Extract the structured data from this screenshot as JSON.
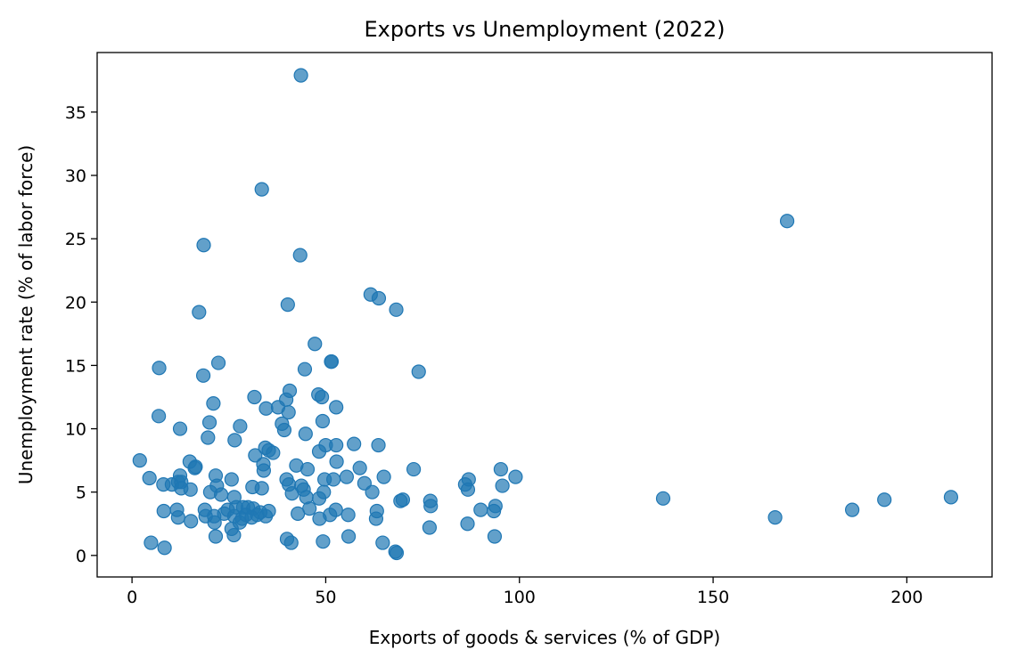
{
  "chart_data": {
    "type": "scatter",
    "title": "Exports vs Unemployment (2022)",
    "xlabel": "Exports of goods & services (% of GDP)",
    "ylabel": "Unemployment rate (% of labor force)",
    "xlim": [
      -9,
      222
    ],
    "ylim": [
      -1.7,
      39.7
    ],
    "xticks": [
      0,
      50,
      100,
      150,
      200
    ],
    "yticks": [
      0,
      5,
      10,
      15,
      20,
      25,
      30,
      35
    ],
    "grid": false,
    "marker_color": "#1f77b4",
    "points": [
      [
        43.6,
        37.9
      ],
      [
        33.5,
        28.9
      ],
      [
        169.1,
        26.4
      ],
      [
        18.5,
        24.5
      ],
      [
        43.4,
        23.7
      ],
      [
        61.6,
        20.6
      ],
      [
        63.7,
        20.3
      ],
      [
        40.2,
        19.8
      ],
      [
        68.2,
        19.4
      ],
      [
        17.3,
        19.2
      ],
      [
        47.2,
        16.7
      ],
      [
        51.4,
        15.3
      ],
      [
        51.5,
        15.3
      ],
      [
        22.3,
        15.2
      ],
      [
        7.0,
        14.8
      ],
      [
        44.6,
        14.7
      ],
      [
        74.0,
        14.5
      ],
      [
        18.4,
        14.2
      ],
      [
        40.7,
        13.0
      ],
      [
        48.1,
        12.7
      ],
      [
        31.6,
        12.5
      ],
      [
        49.0,
        12.5
      ],
      [
        39.8,
        12.3
      ],
      [
        21.0,
        12.0
      ],
      [
        52.7,
        11.7
      ],
      [
        34.6,
        11.6
      ],
      [
        37.7,
        11.7
      ],
      [
        40.4,
        11.3
      ],
      [
        6.9,
        11.0
      ],
      [
        49.2,
        10.6
      ],
      [
        20.0,
        10.5
      ],
      [
        38.7,
        10.4
      ],
      [
        27.9,
        10.2
      ],
      [
        12.4,
        10.0
      ],
      [
        39.3,
        9.9
      ],
      [
        44.8,
        9.6
      ],
      [
        19.6,
        9.3
      ],
      [
        26.5,
        9.1
      ],
      [
        57.3,
        8.8
      ],
      [
        63.6,
        8.7
      ],
      [
        50.0,
        8.7
      ],
      [
        52.7,
        8.7
      ],
      [
        34.4,
        8.5
      ],
      [
        35.3,
        8.3
      ],
      [
        36.4,
        8.1
      ],
      [
        48.3,
        8.2
      ],
      [
        31.8,
        7.9
      ],
      [
        2.0,
        7.5
      ],
      [
        52.8,
        7.4
      ],
      [
        14.9,
        7.4
      ],
      [
        16.2,
        6.9
      ],
      [
        33.9,
        7.2
      ],
      [
        42.4,
        7.1
      ],
      [
        45.3,
        6.8
      ],
      [
        58.8,
        6.9
      ],
      [
        72.7,
        6.8
      ],
      [
        95.2,
        6.8
      ],
      [
        16.4,
        7.0
      ],
      [
        34.0,
        6.7
      ],
      [
        12.4,
        6.3
      ],
      [
        21.6,
        6.3
      ],
      [
        65.0,
        6.2
      ],
      [
        99.0,
        6.2
      ],
      [
        4.5,
        6.1
      ],
      [
        25.7,
        6.0
      ],
      [
        39.9,
        6.0
      ],
      [
        49.7,
        6.0
      ],
      [
        52.0,
        6.0
      ],
      [
        55.4,
        6.2
      ],
      [
        86.9,
        6.0
      ],
      [
        11.9,
        5.8
      ],
      [
        12.7,
        5.8
      ],
      [
        8.1,
        5.6
      ],
      [
        10.3,
        5.6
      ],
      [
        21.9,
        5.5
      ],
      [
        40.5,
        5.6
      ],
      [
        43.7,
        5.5
      ],
      [
        60.0,
        5.7
      ],
      [
        86.0,
        5.6
      ],
      [
        95.6,
        5.5
      ],
      [
        12.7,
        5.3
      ],
      [
        15.1,
        5.2
      ],
      [
        31.1,
        5.4
      ],
      [
        33.5,
        5.3
      ],
      [
        44.3,
        5.2
      ],
      [
        86.7,
        5.2
      ],
      [
        20.2,
        5.0
      ],
      [
        23.0,
        4.8
      ],
      [
        41.3,
        4.9
      ],
      [
        45.0,
        4.6
      ],
      [
        49.5,
        5.0
      ],
      [
        62.0,
        5.0
      ],
      [
        48.3,
        4.5
      ],
      [
        26.4,
        4.6
      ],
      [
        137.1,
        4.5
      ],
      [
        211.4,
        4.6
      ],
      [
        69.3,
        4.3
      ],
      [
        69.9,
        4.4
      ],
      [
        77.0,
        4.3
      ],
      [
        194.2,
        4.4
      ],
      [
        28.7,
        3.8
      ],
      [
        29.9,
        3.8
      ],
      [
        31.3,
        3.7
      ],
      [
        24.7,
        3.6
      ],
      [
        26.9,
        3.8
      ],
      [
        35.3,
        3.5
      ],
      [
        45.8,
        3.7
      ],
      [
        52.6,
        3.6
      ],
      [
        63.2,
        3.5
      ],
      [
        77.1,
        3.9
      ],
      [
        90.0,
        3.6
      ],
      [
        93.8,
        3.9
      ],
      [
        93.4,
        3.5
      ],
      [
        185.9,
        3.6
      ],
      [
        8.2,
        3.5
      ],
      [
        11.6,
        3.6
      ],
      [
        18.8,
        3.6
      ],
      [
        23.8,
        3.3
      ],
      [
        26.4,
        3.1
      ],
      [
        29.4,
        3.2
      ],
      [
        32.3,
        3.2
      ],
      [
        33.1,
        3.4
      ],
      [
        42.8,
        3.3
      ],
      [
        51.1,
        3.2
      ],
      [
        55.8,
        3.2
      ],
      [
        11.9,
        3.0
      ],
      [
        19.0,
        3.1
      ],
      [
        21.2,
        3.1
      ],
      [
        28.4,
        2.9
      ],
      [
        30.9,
        3.0
      ],
      [
        34.5,
        3.1
      ],
      [
        48.4,
        2.9
      ],
      [
        63.0,
        2.9
      ],
      [
        166.0,
        3.0
      ],
      [
        15.2,
        2.7
      ],
      [
        21.3,
        2.6
      ],
      [
        27.8,
        2.6
      ],
      [
        25.7,
        2.1
      ],
      [
        76.8,
        2.2
      ],
      [
        86.6,
        2.5
      ],
      [
        26.3,
        1.6
      ],
      [
        21.6,
        1.5
      ],
      [
        55.9,
        1.5
      ],
      [
        93.6,
        1.5
      ],
      [
        40.0,
        1.3
      ],
      [
        49.3,
        1.1
      ],
      [
        41.1,
        1.0
      ],
      [
        4.9,
        1.0
      ],
      [
        64.7,
        1.0
      ],
      [
        8.4,
        0.6
      ],
      [
        68.0,
        0.3
      ],
      [
        68.3,
        0.2
      ]
    ]
  }
}
